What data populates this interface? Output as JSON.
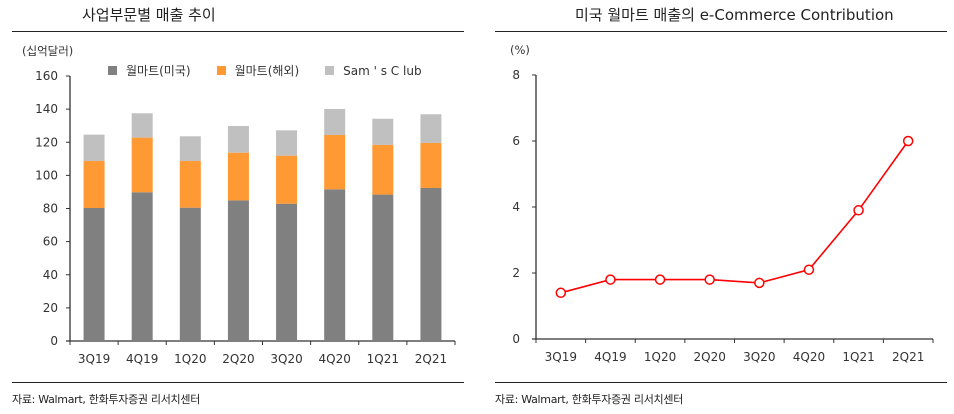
{
  "chart_data": [
    {
      "type": "bar",
      "stacked": true,
      "title": "사업부문별 매출 추이",
      "ylabel": "(십억달러)",
      "xlabel": "",
      "categories": [
        "3Q19",
        "4Q19",
        "1Q20",
        "2Q20",
        "3Q20",
        "4Q20",
        "1Q21",
        "2Q21"
      ],
      "series": [
        {
          "name": "월마트(미국)",
          "color": "#808080",
          "values": [
            80.3,
            89.8,
            80.5,
            84.9,
            82.9,
            91.6,
            88.4,
            92.4
          ]
        },
        {
          "name": "월마트(해외)",
          "color": "#ff9933",
          "values": [
            28.4,
            33.0,
            28.2,
            28.8,
            29.0,
            32.8,
            30.0,
            27.2
          ]
        },
        {
          "name": "Sam's Club",
          "color": "#c0c0c0",
          "values": [
            15.9,
            14.7,
            14.9,
            16.1,
            15.3,
            15.7,
            15.8,
            17.3
          ]
        }
      ],
      "ylim": [
        0,
        160
      ],
      "yticks": [
        0,
        20,
        40,
        60,
        80,
        100,
        120,
        140,
        160
      ],
      "grid": false,
      "legend_position": "top",
      "legend_labels": [
        "월마트(미국)",
        "월마트(해외)",
        "Sam ' s C lub"
      ],
      "source": "자료: Walmart, 한화투자증권 리서치센터"
    },
    {
      "type": "line",
      "title": "미국 월마트 매출의 e-Commerce Contribution",
      "ylabel": "(%)",
      "xlabel": "",
      "categories": [
        "3Q19",
        "4Q19",
        "1Q20",
        "2Q20",
        "3Q20",
        "4Q20",
        "1Q21",
        "2Q21"
      ],
      "series": [
        {
          "name": "e-Commerce Contribution",
          "color": "#ff0000",
          "values": [
            1.4,
            1.8,
            1.8,
            1.8,
            1.7,
            2.1,
            3.9,
            6.0
          ]
        }
      ],
      "ylim": [
        0,
        8
      ],
      "yticks": [
        0,
        2,
        4,
        6,
        8
      ],
      "grid": false,
      "legend_position": "none",
      "source": "자료: Walmart, 한화투자증권 리서치센터"
    }
  ]
}
